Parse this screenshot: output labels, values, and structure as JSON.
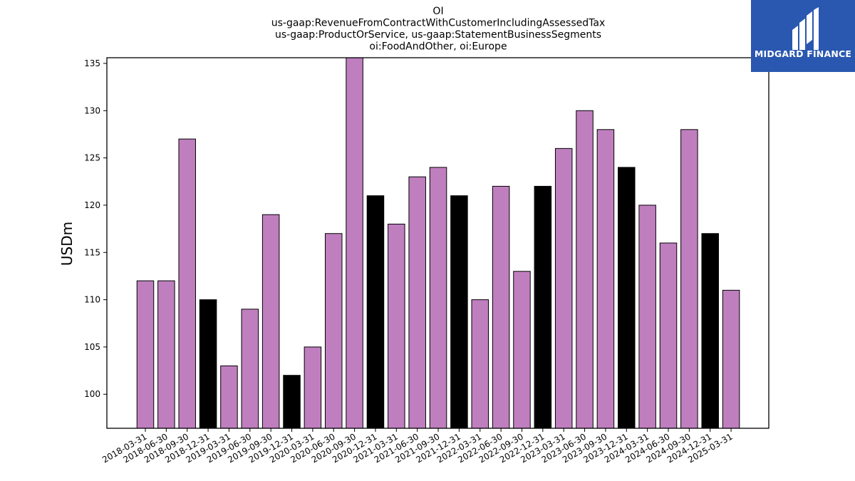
{
  "chart_data": {
    "type": "bar",
    "title_lines": [
      "OI",
      "us-gaap:RevenueFromContractWithCustomerIncludingAssessedTax",
      "us-gaap:ProductOrService, us-gaap:StatementBusinessSegments",
      "oi:FoodAndOther, oi:Europe"
    ],
    "xlabel": "",
    "ylabel": "USDm",
    "ylim": [
      96.4,
      135.6
    ],
    "yticks": [
      100,
      105,
      110,
      115,
      120,
      125,
      130,
      135
    ],
    "grid": false,
    "legend": "none",
    "colors": {
      "quarter": "#bf7fbf",
      "year_end": "#000000",
      "edge": "#000000"
    },
    "categories": [
      "2018-03-31",
      "2018-06-30",
      "2018-09-30",
      "2018-12-31",
      "2019-03-31",
      "2019-06-30",
      "2019-09-30",
      "2019-12-31",
      "2020-03-31",
      "2020-06-30",
      "2020-09-30",
      "2020-12-31",
      "2021-03-31",
      "2021-06-30",
      "2021-09-30",
      "2021-12-31",
      "2022-03-31",
      "2022-06-30",
      "2022-09-30",
      "2022-12-31",
      "2023-03-31",
      "2023-06-30",
      "2023-09-30",
      "2023-12-31",
      "2024-03-31",
      "2024-06-30",
      "2024-09-30",
      "2024-12-31",
      "2025-03-31"
    ],
    "values": [
      112,
      112,
      127,
      110,
      103,
      109,
      119,
      102,
      105,
      117,
      136,
      121,
      118,
      123,
      124,
      121,
      110,
      122,
      113,
      122,
      126,
      130,
      128,
      124,
      120,
      116,
      128,
      117,
      111
    ]
  },
  "logo": {
    "text": "MIDGARD FINANCE",
    "icon": "midgard-logo-icon"
  }
}
